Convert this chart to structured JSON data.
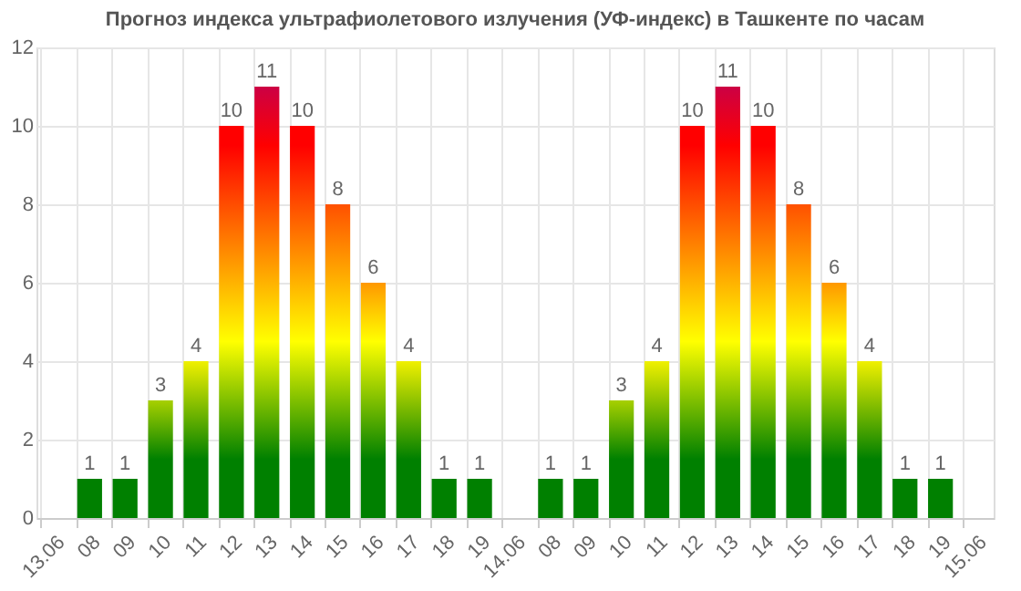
{
  "chart_data": {
    "type": "bar",
    "title": "Прогноз индекса ультрафиолетового излучения (УФ-индекс) в Ташкенте по часам",
    "categories": [
      "13.06",
      "08",
      "09",
      "10",
      "11",
      "12",
      "13",
      "14",
      "15",
      "16",
      "17",
      "18",
      "19",
      "14.06",
      "08",
      "09",
      "10",
      "11",
      "12",
      "13",
      "14",
      "15",
      "16",
      "17",
      "18",
      "19",
      "15.06"
    ],
    "values": [
      null,
      1,
      1,
      3,
      4,
      10,
      11,
      10,
      8,
      6,
      4,
      1,
      1,
      null,
      1,
      1,
      3,
      4,
      10,
      11,
      10,
      8,
      6,
      4,
      1,
      1,
      null
    ],
    "colors": [
      null,
      "#008000",
      "#008000",
      "#a8d000",
      "#f0f000",
      "#ff0000",
      "#cc0044",
      "#ff0000",
      "#ff5000",
      "#ff9800",
      "#f0f000",
      "#008000",
      "#008000",
      null,
      "#008000",
      "#008000",
      "#a8d000",
      "#f0f000",
      "#ff0000",
      "#cc0044",
      "#ff0000",
      "#ff5000",
      "#ff9800",
      "#f0f000",
      "#008000",
      "#008000",
      null
    ],
    "ylim": [
      0,
      12
    ],
    "yticks": [
      0,
      2,
      4,
      6,
      8,
      10,
      12
    ],
    "grid": true,
    "data_labels": true
  }
}
